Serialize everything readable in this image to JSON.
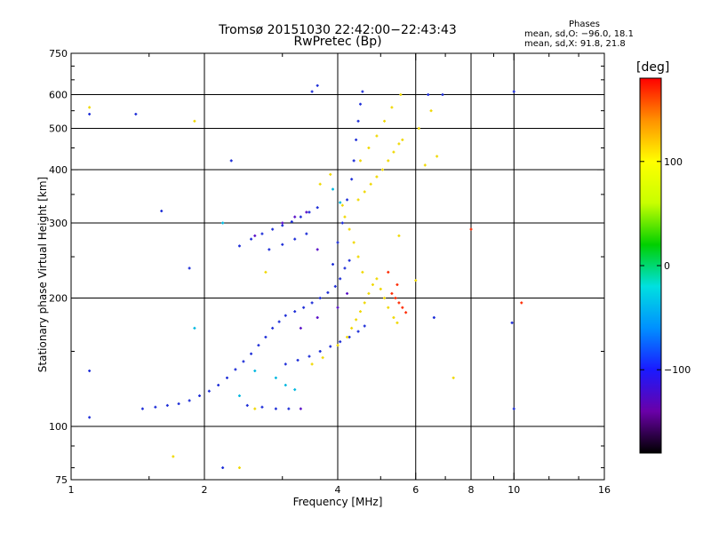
{
  "chart_data": {
    "type": "scatter",
    "title": "Tromsø 20151030 22:42:00−22:43:43",
    "subtitle": "RwPretec (Bp)",
    "stats": {
      "header": "Phases",
      "line1": "mean, sd,O: −96.0, 18.1",
      "line2": "mean, sd,X:  91.8, 21.8"
    },
    "xlabel": "Frequency [MHz]",
    "ylabel": "Stationary phase Virtual Height [km]",
    "xscale": "log",
    "yscale": "log",
    "xlim": [
      1,
      16
    ],
    "ylim": [
      75,
      750
    ],
    "xticks": [
      1,
      2,
      4,
      6,
      8,
      10,
      16
    ],
    "xtick_labels": [
      "1",
      "2",
      "4",
      "6",
      "8",
      "10",
      "16"
    ],
    "xgrid": [
      2,
      4,
      6,
      8,
      10
    ],
    "xminor": [
      1.5,
      3,
      5,
      7,
      9,
      12,
      14
    ],
    "yticks": [
      75,
      100,
      200,
      300,
      400,
      500,
      600,
      750
    ],
    "ytick_labels": [
      "75",
      "100",
      "200",
      "300",
      "400",
      "500",
      "600",
      "750"
    ],
    "ygrid": [
      100,
      200,
      300,
      400,
      500,
      600
    ],
    "grid": true,
    "colorbar": {
      "label": "[deg]",
      "range": [
        -180,
        180
      ],
      "ticks": [
        -100,
        0,
        100
      ],
      "tick_labels": [
        "−100",
        "0",
        "100"
      ],
      "colors": [
        "#000000",
        "#6a00a8",
        "#1a1aff",
        "#0090ff",
        "#00e0e0",
        "#00d000",
        "#c8ff00",
        "#ffff00",
        "#ff9000",
        "#ff0000"
      ]
    },
    "series": [
      {
        "mode": "O",
        "color": "#1f2fd8",
        "points": [
          [
            1.45,
            110
          ],
          [
            1.55,
            111
          ],
          [
            1.65,
            112
          ],
          [
            1.75,
            113
          ],
          [
            1.85,
            115
          ],
          [
            1.95,
            118
          ],
          [
            2.05,
            121
          ],
          [
            2.15,
            125
          ],
          [
            2.25,
            130
          ],
          [
            2.35,
            136
          ],
          [
            2.45,
            142
          ],
          [
            2.55,
            148
          ],
          [
            2.65,
            155
          ],
          [
            2.75,
            162
          ],
          [
            2.85,
            170
          ],
          [
            2.95,
            176
          ],
          [
            3.05,
            182
          ],
          [
            3.2,
            186
          ],
          [
            3.35,
            190
          ],
          [
            3.5,
            195
          ],
          [
            3.65,
            200
          ],
          [
            3.8,
            206
          ],
          [
            3.95,
            213
          ],
          [
            4.05,
            222
          ],
          [
            4.15,
            235
          ],
          [
            4.25,
            245
          ],
          [
            2.5,
            112
          ],
          [
            2.7,
            111
          ],
          [
            2.9,
            110
          ],
          [
            3.1,
            110
          ],
          [
            3.05,
            140
          ],
          [
            3.25,
            143
          ],
          [
            3.45,
            146
          ],
          [
            3.65,
            150
          ],
          [
            3.85,
            154
          ],
          [
            4.05,
            158
          ],
          [
            4.25,
            162
          ],
          [
            4.45,
            167
          ],
          [
            4.6,
            172
          ],
          [
            2.4,
            265
          ],
          [
            2.55,
            275
          ],
          [
            2.7,
            283
          ],
          [
            2.85,
            290
          ],
          [
            3.0,
            296
          ],
          [
            3.15,
            302
          ],
          [
            3.3,
            310
          ],
          [
            3.45,
            318
          ],
          [
            3.6,
            326
          ],
          [
            2.8,
            260
          ],
          [
            3.0,
            267
          ],
          [
            3.2,
            275
          ],
          [
            3.4,
            283
          ],
          [
            3.9,
            240
          ],
          [
            4.0,
            270
          ],
          [
            4.1,
            300
          ],
          [
            4.2,
            340
          ],
          [
            4.3,
            380
          ],
          [
            4.35,
            420
          ],
          [
            4.4,
            470
          ],
          [
            4.45,
            520
          ],
          [
            4.5,
            570
          ],
          [
            4.55,
            610
          ],
          [
            3.5,
            610
          ],
          [
            3.6,
            630
          ],
          [
            2.3,
            420
          ],
          [
            1.85,
            235
          ],
          [
            1.1,
            540
          ],
          [
            1.4,
            540
          ],
          [
            1.1,
            105
          ],
          [
            1.1,
            135
          ],
          [
            1.6,
            320
          ],
          [
            2.2,
            80
          ],
          [
            6.4,
            600
          ],
          [
            6.9,
            600
          ],
          [
            10.0,
            110
          ],
          [
            10.0,
            610
          ],
          [
            9.9,
            175
          ],
          [
            6.6,
            180
          ]
        ]
      },
      {
        "mode": "X",
        "color": "#f0d800",
        "points": [
          [
            4.3,
            170
          ],
          [
            4.4,
            178
          ],
          [
            4.5,
            186
          ],
          [
            4.6,
            195
          ],
          [
            4.7,
            205
          ],
          [
            4.8,
            215
          ],
          [
            4.9,
            222
          ],
          [
            5.0,
            210
          ],
          [
            5.1,
            200
          ],
          [
            5.2,
            190
          ],
          [
            4.55,
            230
          ],
          [
            4.45,
            250
          ],
          [
            4.35,
            270
          ],
          [
            4.25,
            290
          ],
          [
            4.15,
            310
          ],
          [
            4.1,
            330
          ],
          [
            4.45,
            340
          ],
          [
            4.6,
            355
          ],
          [
            4.75,
            370
          ],
          [
            4.9,
            385
          ],
          [
            5.05,
            400
          ],
          [
            5.2,
            420
          ],
          [
            5.35,
            440
          ],
          [
            5.5,
            460
          ],
          [
            5.6,
            470
          ],
          [
            4.5,
            420
          ],
          [
            4.7,
            450
          ],
          [
            4.9,
            480
          ],
          [
            5.1,
            520
          ],
          [
            5.3,
            560
          ],
          [
            5.55,
            600
          ],
          [
            3.65,
            370
          ],
          [
            3.85,
            390
          ],
          [
            3.5,
            140
          ],
          [
            3.7,
            145
          ],
          [
            4.0,
            155
          ],
          [
            4.2,
            162
          ],
          [
            5.35,
            180
          ],
          [
            5.45,
            175
          ],
          [
            2.75,
            230
          ],
          [
            2.6,
            110
          ],
          [
            2.4,
            80
          ],
          [
            1.7,
            85
          ],
          [
            1.1,
            560
          ],
          [
            1.9,
            520
          ],
          [
            6.1,
            500
          ],
          [
            6.5,
            550
          ],
          [
            6.7,
            430
          ],
          [
            7.3,
            130
          ],
          [
            6.3,
            410
          ],
          [
            6.0,
            220
          ],
          [
            5.5,
            280
          ]
        ]
      },
      {
        "mode": "X-red",
        "color": "#ff2a00",
        "points": [
          [
            5.4,
            200
          ],
          [
            5.5,
            195
          ],
          [
            5.6,
            190
          ],
          [
            5.7,
            185
          ],
          [
            5.3,
            205
          ],
          [
            5.2,
            230
          ],
          [
            5.45,
            215
          ],
          [
            8.0,
            290
          ],
          [
            10.4,
            195
          ]
        ]
      },
      {
        "mode": "O-cyan",
        "color": "#00b8e0",
        "points": [
          [
            2.9,
            130
          ],
          [
            3.05,
            125
          ],
          [
            3.2,
            122
          ],
          [
            2.4,
            118
          ],
          [
            2.6,
            135
          ],
          [
            3.9,
            360
          ],
          [
            4.05,
            335
          ],
          [
            2.2,
            300
          ],
          [
            1.9,
            170
          ]
        ]
      },
      {
        "mode": "O-purple",
        "color": "#5a10c8",
        "points": [
          [
            3.0,
            300
          ],
          [
            3.2,
            310
          ],
          [
            3.4,
            318
          ],
          [
            2.6,
            280
          ],
          [
            3.3,
            170
          ],
          [
            3.6,
            180
          ],
          [
            4.0,
            190
          ],
          [
            4.2,
            205
          ],
          [
            3.6,
            260
          ],
          [
            3.3,
            110
          ]
        ]
      }
    ]
  }
}
